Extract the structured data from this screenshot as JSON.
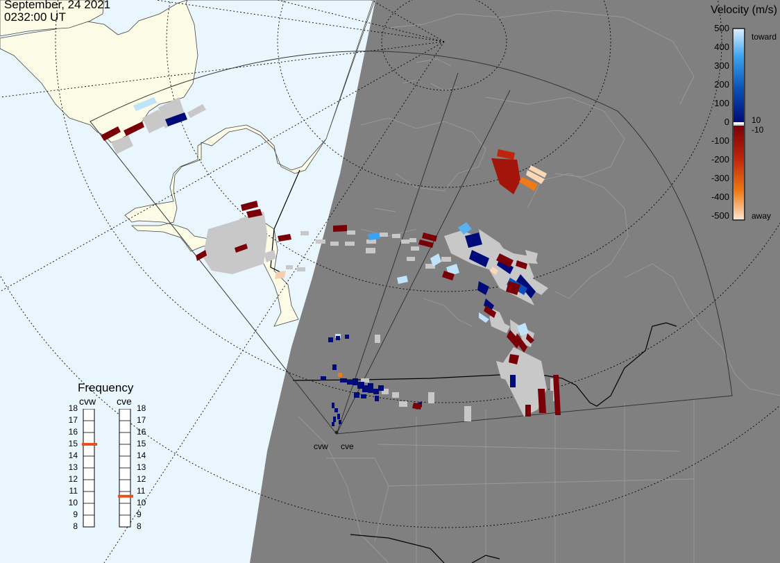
{
  "header": {
    "date": "September, 24 2021",
    "time": "0232:00 UT"
  },
  "velocity_scale": {
    "title": "Velocity (m/s)",
    "ticks": [
      "500",
      "400",
      "300",
      "200",
      "100",
      "0",
      "-100",
      "-200",
      "-300",
      "-400",
      "-500"
    ],
    "label_toward": "toward",
    "label_away": "away",
    "label_pos_threshold": "10",
    "label_neg_threshold": "-10",
    "colors": [
      "#bfe3fb",
      "#3aa2ef",
      "#0a4fb5",
      "#000b7a",
      "#7a0008",
      "#c0240a",
      "#f07a14",
      "#fcd8b5"
    ]
  },
  "frequency_panel": {
    "title": "Frequency",
    "radars": [
      {
        "name": "cvw",
        "frequency_mhz": 15
      },
      {
        "name": "cve",
        "frequency_mhz": 10.6
      }
    ],
    "ticks": [
      "18",
      "17",
      "16",
      "15",
      "14",
      "13",
      "12",
      "11",
      "10",
      "9",
      "8"
    ],
    "range": [
      8,
      18
    ],
    "marker_color": "#e2541c"
  },
  "sites": [
    {
      "name": "cvw"
    },
    {
      "name": "cve"
    }
  ],
  "colors": {
    "ocean": "#eaf6fd",
    "land": "#fcfbe6",
    "night_side": "#808080",
    "ground_scatter": "#c8c8c8"
  }
}
